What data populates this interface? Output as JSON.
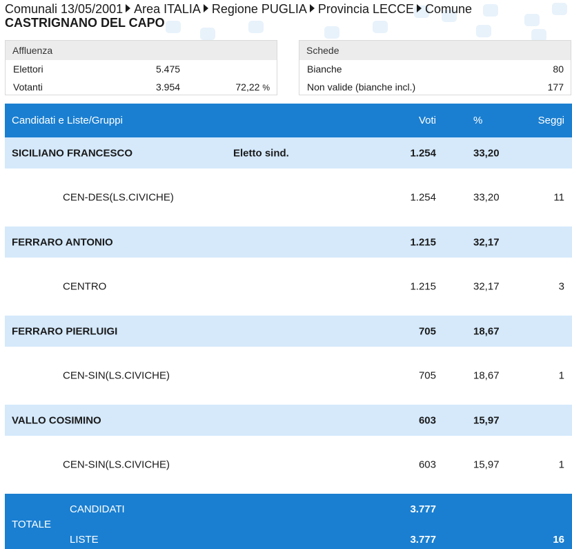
{
  "breadcrumb": {
    "items": [
      "Comunali 13/05/2001",
      "Area ITALIA",
      "Regione PUGLIA",
      "Provincia LECCE",
      "Comune"
    ],
    "comune": "CASTRIGNANO DEL CAPO"
  },
  "affluenza": {
    "title": "Affluenza",
    "elettori_label": "Elettori",
    "elettori_value": "5.475",
    "votanti_label": "Votanti",
    "votanti_value": "3.954",
    "votanti_pct": "72,22",
    "pct_sign": "%"
  },
  "schede": {
    "title": "Schede",
    "bianche_label": "Bianche",
    "bianche_value": "80",
    "nonvalide_label": "Non valide (bianche incl.)",
    "nonvalide_value": "177"
  },
  "table": {
    "headers": {
      "name": "Candidati e Liste/Gruppi",
      "voti": "Voti",
      "pct": "%",
      "seggi": "Seggi"
    },
    "candidates": [
      {
        "name": "SICILIANO FRANCESCO",
        "note": "Eletto sind.",
        "voti": "1.254",
        "pct": "33,20",
        "list": {
          "name": "CEN-DES(LS.CIVICHE)",
          "voti": "1.254",
          "pct": "33,20",
          "seggi": "11"
        }
      },
      {
        "name": "FERRARO ANTONIO",
        "note": "",
        "voti": "1.215",
        "pct": "32,17",
        "list": {
          "name": "CENTRO",
          "voti": "1.215",
          "pct": "32,17",
          "seggi": "3"
        }
      },
      {
        "name": "FERRARO PIERLUIGI",
        "note": "",
        "voti": "705",
        "pct": "18,67",
        "list": {
          "name": "CEN-SIN(LS.CIVICHE)",
          "voti": "705",
          "pct": "18,67",
          "seggi": "1"
        }
      },
      {
        "name": "VALLO COSIMINO",
        "note": "",
        "voti": "603",
        "pct": "15,97",
        "list": {
          "name": "CEN-SIN(LS.CIVICHE)",
          "voti": "603",
          "pct": "15,97",
          "seggi": "1"
        }
      }
    ],
    "totale": {
      "label": "TOTALE",
      "candidati_label": "CANDIDATI",
      "candidati_voti": "3.777",
      "liste_label": "LISTE",
      "liste_voti": "3.777",
      "liste_seggi": "16"
    }
  },
  "colors": {
    "header_blue": "#1a7fd1",
    "candidate_row": "#d5e9fb",
    "panel_title": "#ececec"
  }
}
